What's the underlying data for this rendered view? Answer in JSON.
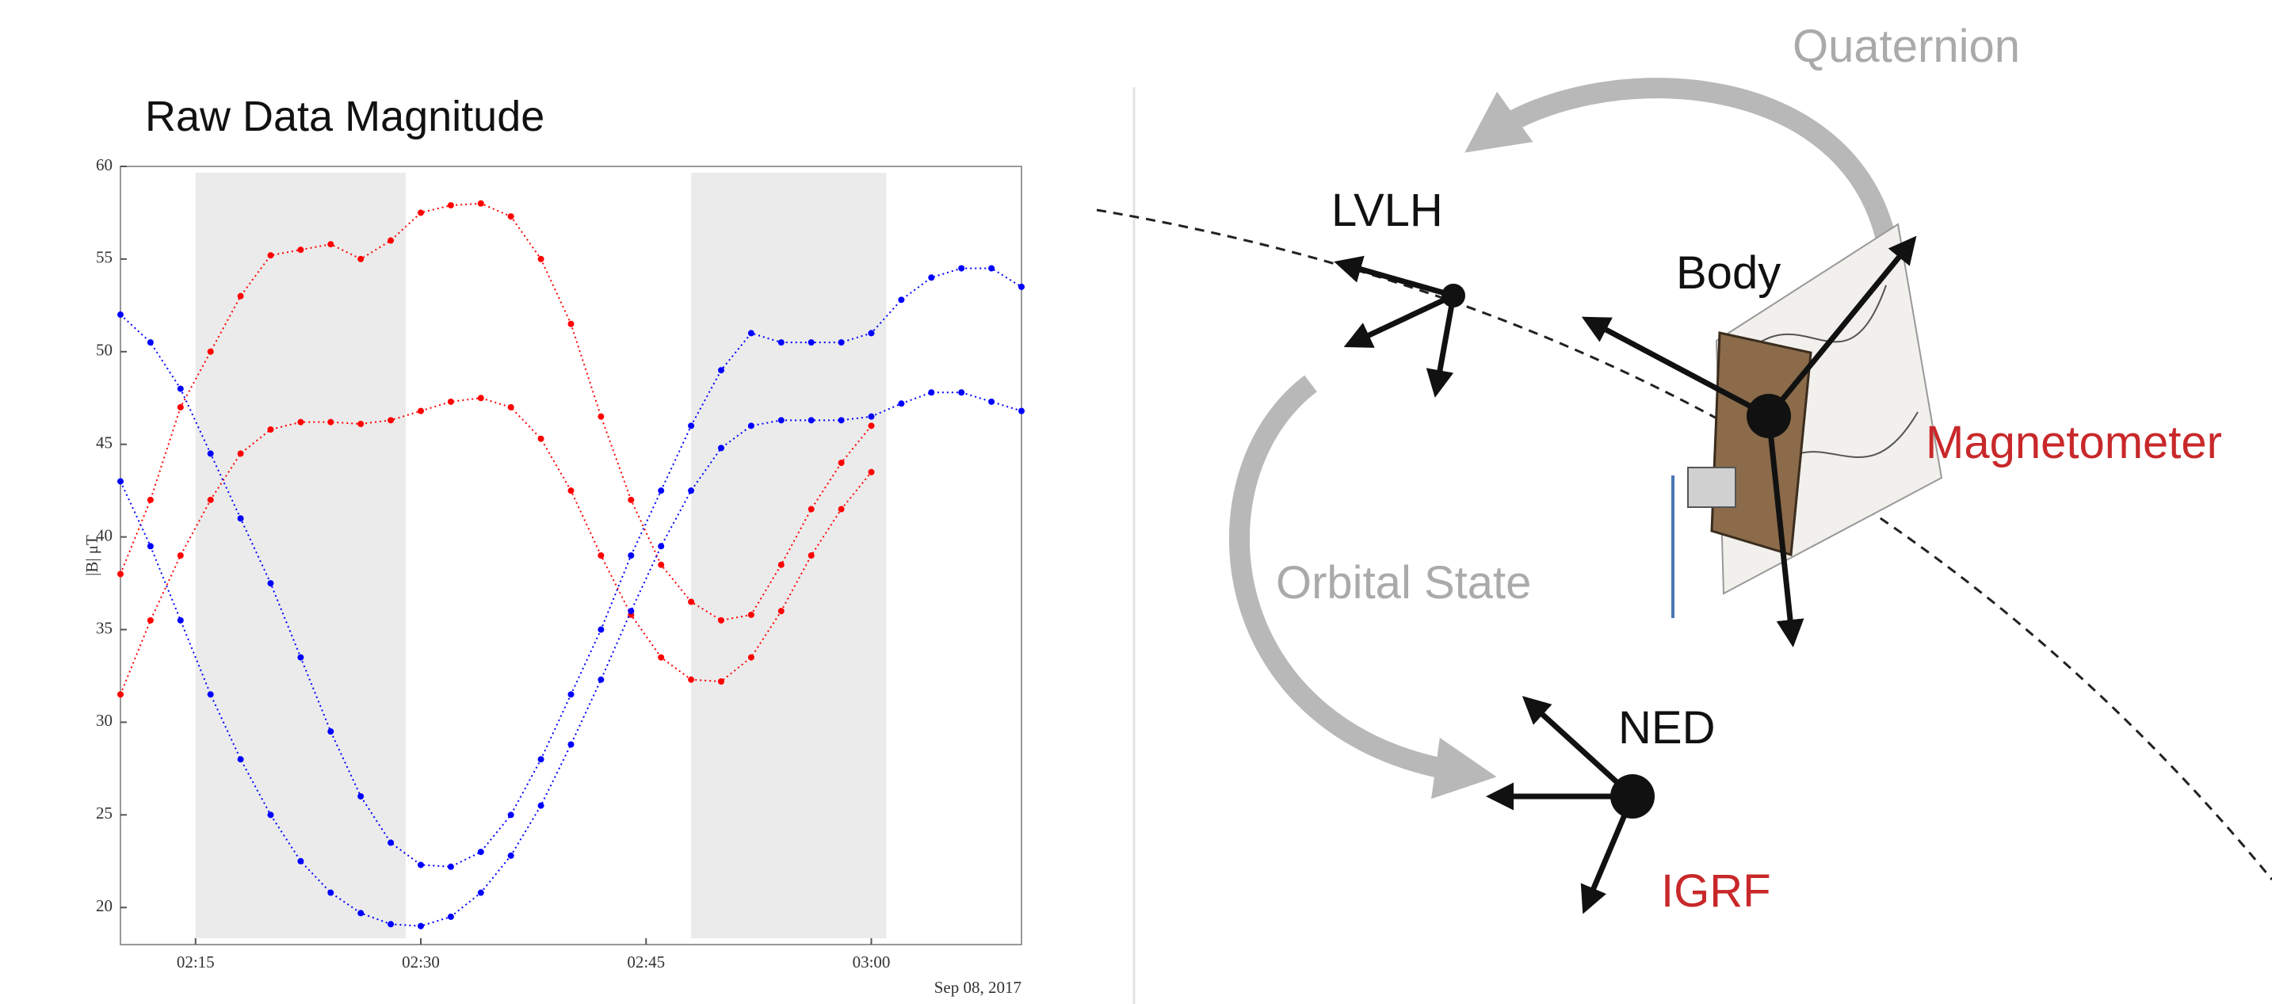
{
  "chart_data": {
    "type": "scatter",
    "title": "Raw Data Magnitude",
    "y_label": "|B| μT",
    "x_offset_label": "Sep 08, 2017",
    "x": [
      "02:10",
      "02:12",
      "02:14",
      "02:16",
      "02:18",
      "02:20",
      "02:22",
      "02:24",
      "02:26",
      "02:28",
      "02:30",
      "02:32",
      "02:34",
      "02:36",
      "02:38",
      "02:40",
      "02:42",
      "02:44",
      "02:46",
      "02:48",
      "02:50",
      "02:52",
      "02:54",
      "02:56",
      "02:58",
      "03:00",
      "03:02",
      "03:04",
      "03:06",
      "03:08",
      "03:10"
    ],
    "series": [
      {
        "color": "#ff0000",
        "values": [
          38,
          42,
          47,
          50,
          53,
          55.2,
          55.5,
          55.8,
          55,
          56,
          57.5,
          57.9,
          58,
          57.3,
          55,
          51.5,
          46.5,
          42,
          38.5,
          36.5,
          35.5,
          35.8,
          38.5,
          41.5,
          44,
          46,
          null,
          null,
          null,
          null,
          null
        ]
      },
      {
        "color": "#ff0000",
        "values": [
          31.5,
          35.5,
          39,
          42,
          44.5,
          45.8,
          46.2,
          46.2,
          46.1,
          46.3,
          46.8,
          47.3,
          47.5,
          47,
          45.3,
          42.5,
          39,
          35.8,
          33.5,
          32.3,
          32.2,
          33.5,
          36,
          39,
          41.5,
          43.5,
          null,
          null,
          null,
          null,
          null
        ]
      },
      {
        "color": "#0000ff",
        "values": [
          52,
          50.5,
          48,
          44.5,
          41,
          37.5,
          33.5,
          29.5,
          26,
          23.5,
          22.3,
          22.2,
          23,
          25,
          28,
          31.5,
          35,
          39,
          42.5,
          46,
          49,
          51,
          50.5,
          50.5,
          50.5,
          51,
          52.8,
          54,
          54.5,
          54.5,
          53.5
        ]
      },
      {
        "color": "#0000ff",
        "values": [
          43,
          39.5,
          35.5,
          31.5,
          28,
          25,
          22.5,
          20.8,
          19.7,
          19.1,
          19,
          19.5,
          20.8,
          22.8,
          25.5,
          28.8,
          32.3,
          36,
          39.5,
          42.5,
          44.8,
          46,
          46.3,
          46.3,
          46.3,
          46.5,
          47.2,
          47.8,
          47.8,
          47.3,
          46.8
        ]
      }
    ],
    "xlim": [
      "02:10",
      "03:10"
    ],
    "xticks": [
      "02:15",
      "02:30",
      "02:45",
      "03:00"
    ],
    "ylim": [
      18,
      60
    ],
    "yticks": [
      20,
      25,
      30,
      35,
      40,
      45,
      50,
      55,
      60
    ],
    "shaded_spans": [
      [
        "02:15",
        "02:29"
      ],
      [
        "02:48",
        "03:01"
      ]
    ],
    "shade_color": "#ebebeb",
    "grid": false
  },
  "diagram": {
    "quaternion": "Quaternion",
    "lvlh": "LVLH",
    "body": "Body",
    "magnetometer": "Magnetometer",
    "orbital_state": "Orbital State",
    "ned": "NED",
    "igrf": "IGRF"
  }
}
